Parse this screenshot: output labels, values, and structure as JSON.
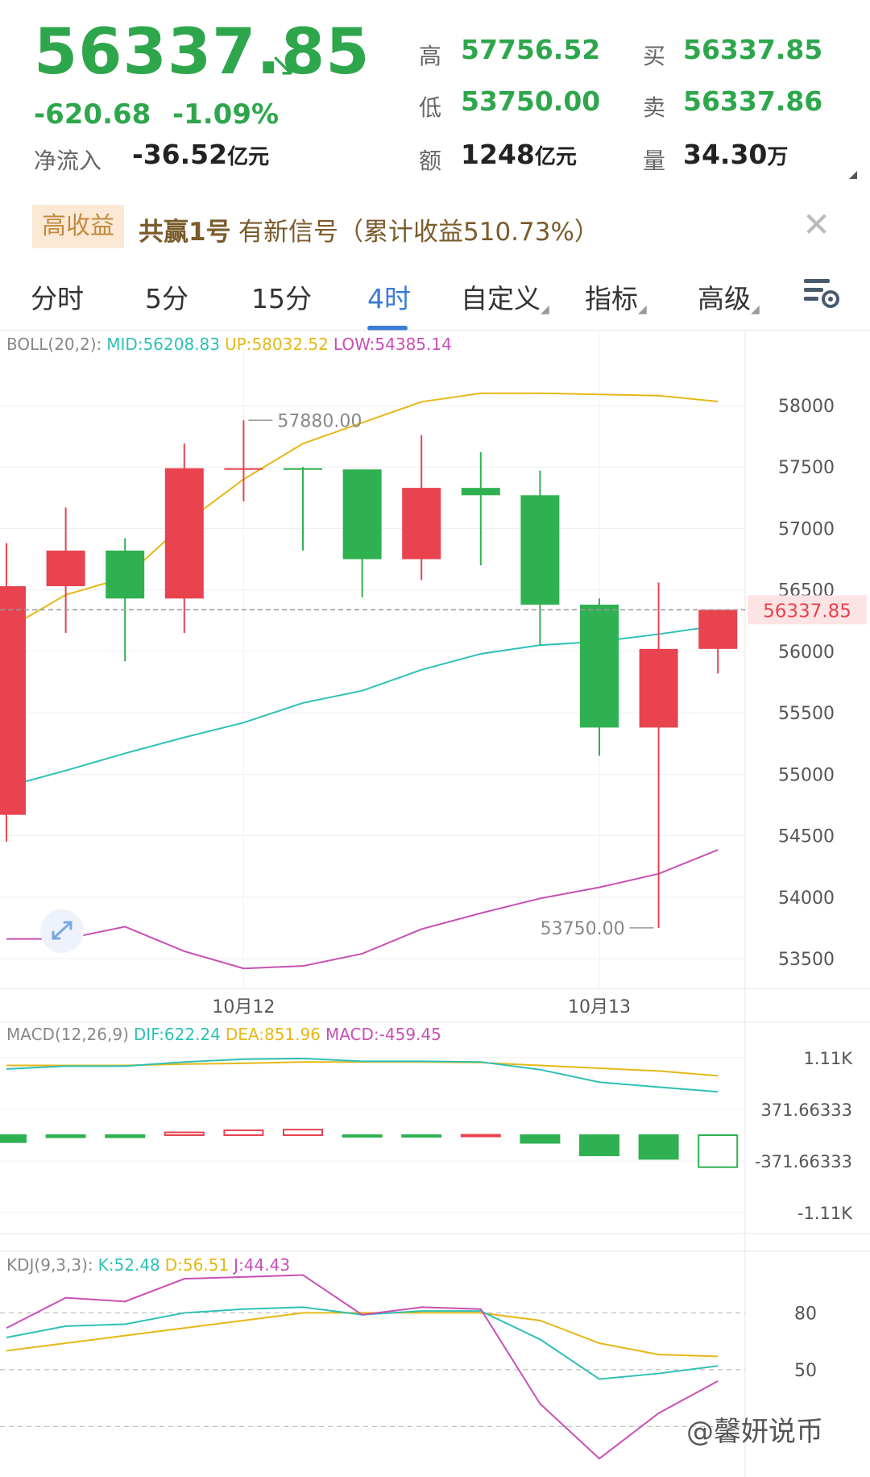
{
  "header": {
    "price": "56337.85",
    "change": "-620.68",
    "change_pct": "-1.09%",
    "net_inflow_label": "净流入",
    "net_inflow_value": "-36.52",
    "net_inflow_unit": "亿元",
    "high_label": "高",
    "high_value": "57756.52",
    "low_label": "低",
    "low_value": "53750.00",
    "amount_label": "额",
    "amount_value": "1248",
    "amount_unit": "亿元",
    "buy_label": "买",
    "buy_value": "56337.85",
    "sell_label": "卖",
    "sell_value": "56337.86",
    "volume_label": "量",
    "volume_value": "34.30",
    "volume_unit": "万"
  },
  "banner": {
    "tag": "高收益",
    "name": "共赢1号",
    "text": "有新信号（累计收益510.73%）"
  },
  "tabs": [
    {
      "label": "分时",
      "active": false
    },
    {
      "label": "5分",
      "active": false
    },
    {
      "label": "15分",
      "active": false
    },
    {
      "label": "4时",
      "active": true
    },
    {
      "label": "自定义",
      "active": false
    },
    {
      "label": "指标",
      "active": false
    },
    {
      "label": "高级",
      "active": false
    }
  ],
  "colors": {
    "up": "#e8434f",
    "down": "#2fb151",
    "mid": "#2ec0b6",
    "upper": "#e5b817",
    "lower": "#c94fb6",
    "accent": "#3a7bd5"
  },
  "icons": {
    "settings": "chart-settings-icon",
    "expand": "expand-icon",
    "close": "close-icon",
    "trend": "down-arrow-icon"
  },
  "watermark": "@馨妍说币",
  "chart_data": [
    {
      "type": "candlestick",
      "legend": {
        "name": "BOLL(20,2):",
        "items": [
          {
            "label": "MID:56208.83",
            "color": "#2ec0b6"
          },
          {
            "label": "UP:58032.52",
            "color": "#e5b817"
          },
          {
            "label": "LOW:54385.14",
            "color": "#c94fb6"
          }
        ]
      },
      "y_ticks": [
        "58000",
        "57500",
        "57000",
        "56500",
        "56000",
        "55500",
        "55000",
        "54500",
        "54000",
        "53500"
      ],
      "ylim": [
        53310,
        58610
      ],
      "x_labels": [
        {
          "label": "10月12",
          "at": 4
        },
        {
          "label": "10月13",
          "at": 10
        }
      ],
      "current_price_label": "56337.85",
      "max_label": "57880.00",
      "min_label": "53750.00",
      "candles": [
        {
          "o": 54670,
          "h": 56880,
          "l": 54450,
          "c": 56530
        },
        {
          "o": 56530,
          "h": 57170,
          "l": 56150,
          "c": 56820
        },
        {
          "o": 56820,
          "h": 56920,
          "l": 55920,
          "c": 56430
        },
        {
          "o": 56430,
          "h": 57690,
          "l": 56150,
          "c": 57490
        },
        {
          "o": 57490,
          "h": 57880,
          "l": 57220,
          "c": 57490
        },
        {
          "o": 57490,
          "h": 57500,
          "l": 56820,
          "c": 57480
        },
        {
          "o": 57480,
          "h": 57480,
          "l": 56440,
          "c": 56750
        },
        {
          "o": 56750,
          "h": 57760,
          "l": 56580,
          "c": 57330
        },
        {
          "o": 57330,
          "h": 57620,
          "l": 56700,
          "c": 57270
        },
        {
          "o": 57270,
          "h": 57470,
          "l": 56050,
          "c": 56380
        },
        {
          "o": 56380,
          "h": 56430,
          "l": 55150,
          "c": 55380
        },
        {
          "o": 55380,
          "h": 56560,
          "l": 53750,
          "c": 56020
        },
        {
          "o": 56020,
          "h": 56340,
          "l": 55820,
          "c": 56338
        }
      ],
      "mid": [
        54900,
        55030,
        55170,
        55300,
        55420,
        55580,
        55680,
        55850,
        55980,
        56050,
        56080,
        56140,
        56209
      ],
      "upper": [
        56180,
        56460,
        56600,
        57040,
        57400,
        57690,
        57860,
        58030,
        58100,
        58100,
        58090,
        58080,
        58033
      ],
      "lower": [
        53660,
        53660,
        53760,
        53560,
        53420,
        53440,
        53540,
        53740,
        53870,
        53990,
        54080,
        54190,
        54385
      ]
    },
    {
      "type": "bar",
      "legend": {
        "name": "MACD(12,26,9)",
        "items": [
          {
            "label": "DIF:622.24",
            "color": "#2ec0b6"
          },
          {
            "label": "DEA:851.96",
            "color": "#e5b817"
          },
          {
            "label": "MACD:-459.45",
            "color": "#c94fb6"
          }
        ]
      },
      "y_ticks": [
        "1.11K",
        "371.66333",
        "-371.66333",
        "-1.11K"
      ],
      "ylim": [
        -1110,
        1110
      ],
      "dif": [
        950,
        990,
        990,
        1050,
        1090,
        1100,
        1060,
        1060,
        1050,
        940,
        760,
        690,
        622
      ],
      "dea": [
        1000,
        1000,
        1000,
        1020,
        1030,
        1050,
        1050,
        1050,
        1040,
        1000,
        960,
        920,
        852
      ],
      "macd": [
        -100,
        -30,
        -30,
        40,
        70,
        80,
        -10,
        -10,
        5,
        -110,
        -290,
        -340,
        -459
      ]
    },
    {
      "type": "line",
      "legend": {
        "name": "KDJ(9,3,3):",
        "items": [
          {
            "label": "K:52.48",
            "color": "#2ec0b6"
          },
          {
            "label": "D:56.51",
            "color": "#e5b817"
          },
          {
            "label": "J:44.43",
            "color": "#c94fb6"
          }
        ]
      },
      "y_ticks": [
        "80",
        "50"
      ],
      "ylim": [
        -5,
        110
      ],
      "k": [
        67,
        73,
        74,
        80,
        82,
        83,
        79,
        81,
        81,
        66,
        45,
        48,
        52
      ],
      "d": [
        60,
        64,
        68,
        72,
        76,
        80,
        80,
        80,
        80,
        76,
        64,
        58,
        57
      ],
      "j": [
        72,
        88,
        86,
        98,
        99,
        100,
        79,
        83,
        82,
        32,
        3,
        27,
        44
      ]
    }
  ]
}
